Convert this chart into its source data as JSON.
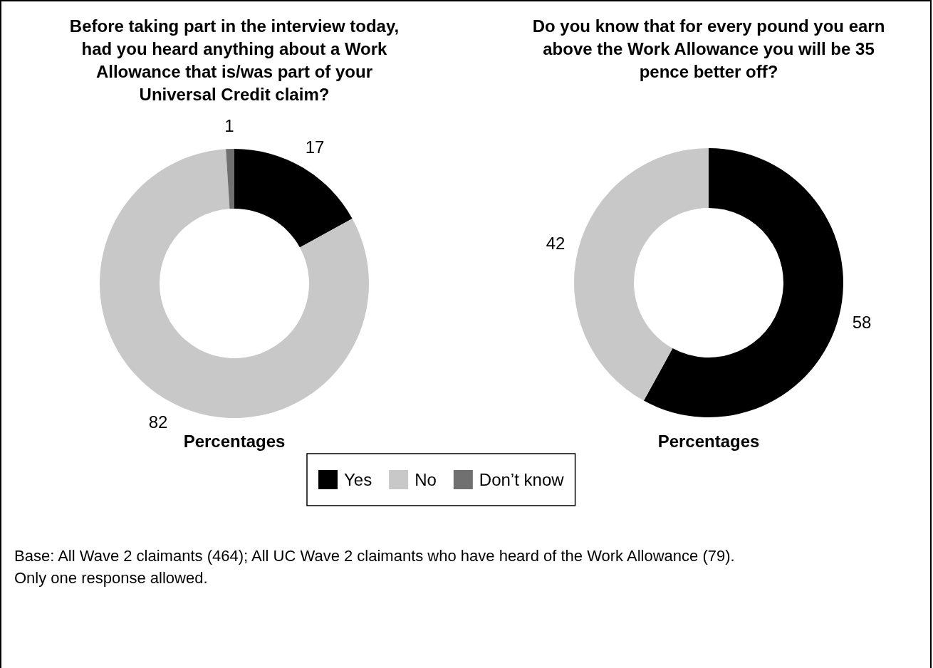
{
  "chart_data": [
    {
      "type": "donut",
      "title": "Before taking part in the interview today, had you heard anything about a Work Allowance that is/was part of your Universal Credit claim?",
      "xlabel": "Percentages",
      "categories": [
        "Yes",
        "No",
        "Don’t know"
      ],
      "values": [
        17,
        82,
        1
      ],
      "colors": [
        "#000000",
        "#c8c8c8",
        "#707070"
      ],
      "data_labels": true,
      "legend": "bottom right",
      "annotations": [
        "Base: All Wave 2 claimants (464); All UC Wave 2 claimants who have heard of the Work Allowance (79).",
        "Only one response allowed."
      ]
    },
    {
      "type": "donut",
      "title": "Do you know that for every pound you earn above the Work Allowance you will be 35 pence better off?",
      "xlabel": "Percentages",
      "categories": [
        null,
        null
      ],
      "values": [
        58,
        42
      ],
      "colors": [
        "#000000",
        "#c8c8c8"
      ],
      "data_labels": true
    }
  ]
}
